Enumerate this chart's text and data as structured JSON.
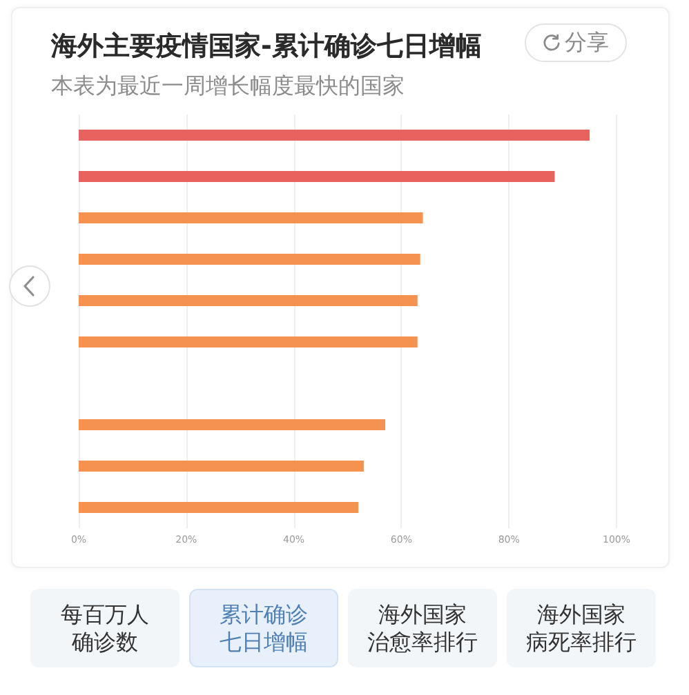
{
  "chart_data": {
    "type": "bar",
    "orientation": "horizontal",
    "title": "海外主要疫情国家-累计确诊七日增幅",
    "subtitle": "本表为最近一周增长幅度最快的国家",
    "categories": [
      null,
      null,
      null,
      null,
      null,
      null,
      null,
      null,
      null,
      null
    ],
    "values": [
      95,
      88.5,
      64,
      63.5,
      63,
      63,
      null,
      57,
      53,
      52
    ],
    "colors": [
      "#e8625e",
      "#e8625e",
      "#f5924f",
      "#f5924f",
      "#f5924f",
      "#f5924f",
      "#f5924f",
      "#f5924f",
      "#f5924f",
      "#f5924f"
    ],
    "xlim": [
      0,
      100
    ],
    "xticks": [
      {
        "value": 0,
        "label": "0%"
      },
      {
        "value": 20,
        "label": "20%"
      },
      {
        "value": 40,
        "label": "40%"
      },
      {
        "value": 60,
        "label": "60%"
      },
      {
        "value": 80,
        "label": "80%"
      },
      {
        "value": 100,
        "label": "100%"
      }
    ],
    "grid": "x",
    "annotations": [
      "分享",
      "每百万人确诊数",
      "累计确诊七日增幅",
      "海外国家治愈率排行",
      "海外国家病死率排行"
    ]
  }
}
